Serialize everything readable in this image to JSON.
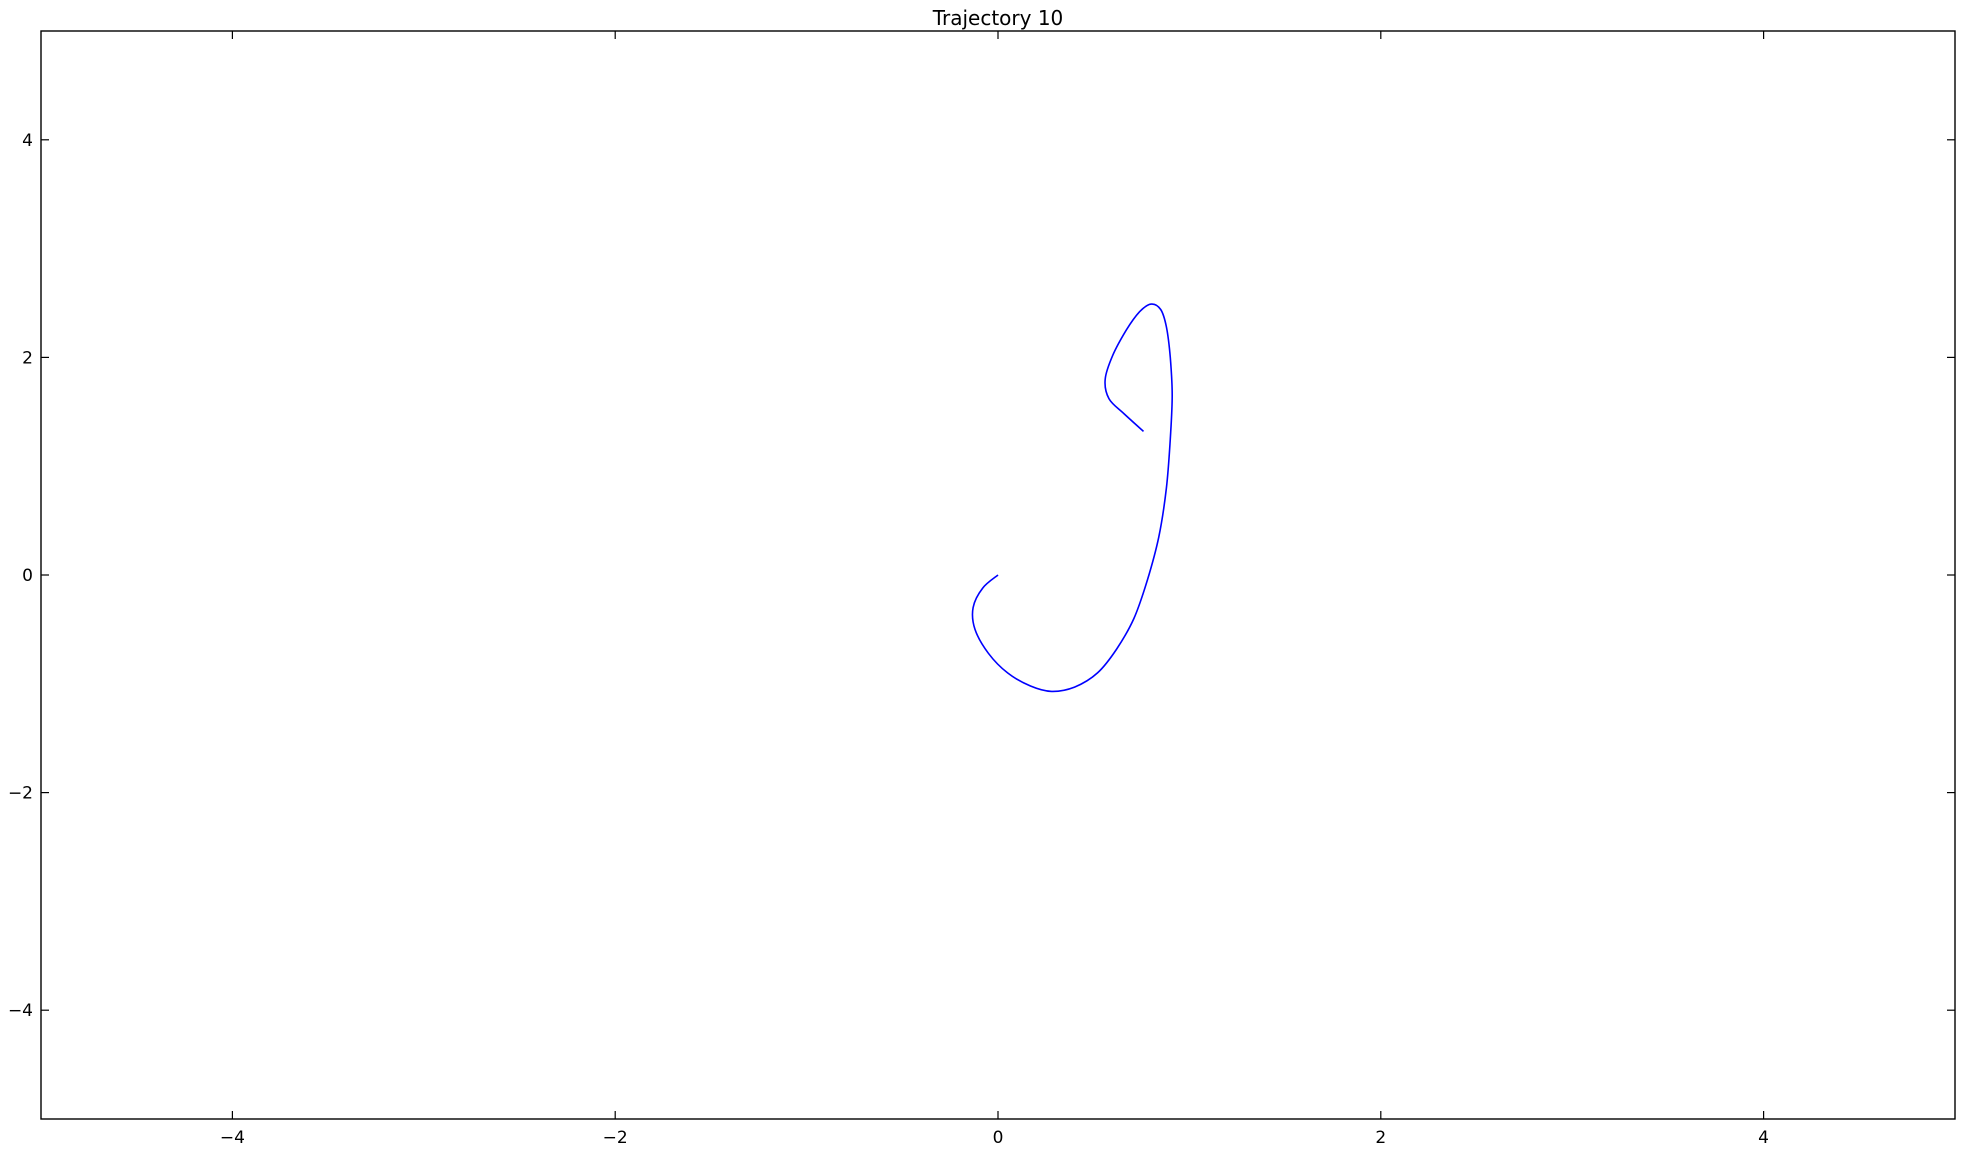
{
  "chart_data": {
    "type": "line",
    "title": "Trajectory 10",
    "xlabel": "",
    "ylabel": "",
    "xlim": [
      -5,
      5
    ],
    "ylim": [
      -5,
      5
    ],
    "grid": false,
    "xticks": [
      -4,
      -2,
      0,
      2,
      4
    ],
    "yticks": [
      -4,
      -2,
      0,
      2,
      4
    ],
    "xtick_labels": [
      "−4",
      "−2",
      "0",
      "2",
      "4"
    ],
    "ytick_labels": [
      "−4",
      "−2",
      "0",
      "2",
      "4"
    ],
    "series": [
      {
        "color": "#0000ff",
        "x": [
          0.0,
          -0.08,
          -0.13,
          -0.12,
          -0.05,
          0.05,
          0.17,
          0.28,
          0.4,
          0.52,
          0.62,
          0.71,
          0.78,
          0.84,
          0.88,
          0.9,
          0.91,
          0.9,
          0.88,
          0.85,
          0.8,
          0.74,
          0.67,
          0.6,
          0.56,
          0.58,
          0.66,
          0.76
        ],
        "y": [
          0.0,
          -0.12,
          -0.3,
          -0.5,
          -0.72,
          -0.9,
          -1.02,
          -1.07,
          -1.03,
          -0.9,
          -0.68,
          -0.4,
          -0.05,
          0.35,
          0.8,
          1.25,
          1.65,
          2.0,
          2.28,
          2.44,
          2.49,
          2.42,
          2.25,
          2.02,
          1.8,
          1.62,
          1.48,
          1.32
        ]
      }
    ]
  }
}
